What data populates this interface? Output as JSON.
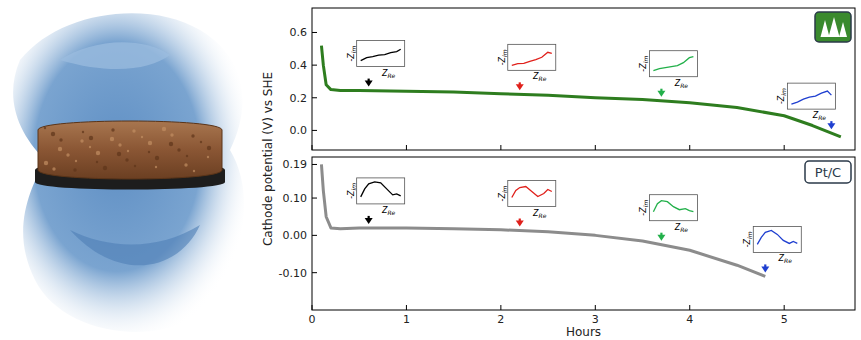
{
  "chart_data": [
    {
      "type": "line",
      "ylabel": "Cathode potential (V) vs SHE",
      "x": [
        0.1,
        0.12,
        0.15,
        0.2,
        0.3,
        0.5,
        1,
        1.5,
        2,
        2.5,
        3,
        3.5,
        4,
        4.5,
        5,
        5.3,
        5.6
      ],
      "series": [
        {
          "color": "#2e7d1f",
          "values": [
            0.52,
            0.4,
            0.28,
            0.25,
            0.245,
            0.245,
            0.24,
            0.235,
            0.225,
            0.215,
            0.2,
            0.19,
            0.17,
            0.14,
            0.09,
            0.03,
            -0.04
          ]
        }
      ],
      "xlim": [
        0,
        5.75
      ],
      "xticks": [
        0,
        1,
        2,
        3,
        4,
        5
      ],
      "ylim": [
        -0.12,
        0.75
      ],
      "yticks": [
        {
          "value": 0,
          "label": "0.0"
        },
        0.2,
        0.4,
        0.6
      ],
      "tick_labels": "y",
      "inset_ylabel": {
        "text": "-Z",
        "sub": "im"
      },
      "inset_xlabel": {
        "text": "Z",
        "sub": "Re"
      },
      "insets": [
        {
          "x": 0.6,
          "color": "#000000",
          "curve_x": [
            0,
            0.15,
            0.3,
            0.45,
            0.6,
            0.75,
            0.9,
            1
          ],
          "curve_y": [
            0.15,
            0.3,
            0.35,
            0.42,
            0.45,
            0.55,
            0.6,
            0.72
          ]
        },
        {
          "x": 2.2,
          "color": "#e0201b",
          "curve_x": [
            0,
            0.15,
            0.3,
            0.45,
            0.6,
            0.75,
            0.9,
            1
          ],
          "curve_y": [
            0.1,
            0.18,
            0.2,
            0.3,
            0.38,
            0.5,
            0.75,
            0.7
          ]
        },
        {
          "x": 3.7,
          "color": "#22b04a",
          "curve_x": [
            0,
            0.15,
            0.3,
            0.45,
            0.6,
            0.75,
            0.9,
            1
          ],
          "curve_y": [
            0.15,
            0.25,
            0.3,
            0.35,
            0.4,
            0.55,
            0.8,
            0.85
          ]
        },
        {
          "x": 5.5,
          "color": "#1f3fd0",
          "curve_x": [
            0,
            0.15,
            0.3,
            0.45,
            0.6,
            0.75,
            0.9,
            1
          ],
          "curve_y": [
            0.1,
            0.2,
            0.35,
            0.45,
            0.5,
            0.65,
            0.75,
            0.55
          ]
        }
      ]
    },
    {
      "type": "line",
      "xlabel": "Hours",
      "label": "Pt/C",
      "x": [
        0.1,
        0.12,
        0.15,
        0.2,
        0.3,
        0.5,
        1,
        1.5,
        2,
        2.5,
        3,
        3.5,
        4,
        4.5,
        4.8
      ],
      "series": [
        {
          "color": "#8c8c8c",
          "values": [
            0.19,
            0.12,
            0.05,
            0.02,
            0.018,
            0.02,
            0.02,
            0.018,
            0.015,
            0.01,
            0.0,
            -0.015,
            -0.04,
            -0.08,
            -0.11
          ]
        }
      ],
      "xlim": [
        0,
        5.75
      ],
      "xticks": [
        0,
        1,
        2,
        3,
        4,
        5
      ],
      "ylim": [
        -0.2,
        0.21
      ],
      "yticks": [
        {
          "value": -0.1,
          "label": "-0.10"
        },
        {
          "value": 0,
          "label": "0.00"
        },
        {
          "value": 0.1,
          "label": "0.10"
        },
        0.19
      ],
      "tick_labels": true,
      "inset_ylabel": {
        "text": "-Z",
        "sub": "im"
      },
      "inset_xlabel": {
        "text": "Z",
        "sub": "Re"
      },
      "insets": [
        {
          "x": 0.6,
          "color": "#000000",
          "curve_x": [
            0,
            0.1,
            0.2,
            0.35,
            0.5,
            0.65,
            0.8,
            0.9,
            1
          ],
          "curve_y": [
            0.2,
            0.6,
            0.85,
            0.95,
            0.9,
            0.6,
            0.3,
            0.35,
            0.25
          ]
        },
        {
          "x": 2.2,
          "color": "#e0201b",
          "curve_x": [
            0,
            0.1,
            0.2,
            0.35,
            0.5,
            0.65,
            0.8,
            0.9,
            1
          ],
          "curve_y": [
            0.3,
            0.65,
            0.8,
            0.85,
            0.6,
            0.35,
            0.5,
            0.7,
            0.6
          ]
        },
        {
          "x": 3.7,
          "color": "#22b04a",
          "curve_x": [
            0,
            0.1,
            0.2,
            0.35,
            0.5,
            0.65,
            0.8,
            0.9,
            1
          ],
          "curve_y": [
            0.3,
            0.7,
            0.85,
            0.8,
            0.55,
            0.4,
            0.45,
            0.35,
            0.3
          ]
        },
        {
          "x": 4.8,
          "color": "#1f3fd0",
          "curve_x": [
            0,
            0.1,
            0.2,
            0.35,
            0.5,
            0.65,
            0.8,
            0.9,
            1
          ],
          "curve_y": [
            0.25,
            0.6,
            0.85,
            0.95,
            0.75,
            0.45,
            0.3,
            0.4,
            0.3
          ]
        }
      ]
    }
  ]
}
